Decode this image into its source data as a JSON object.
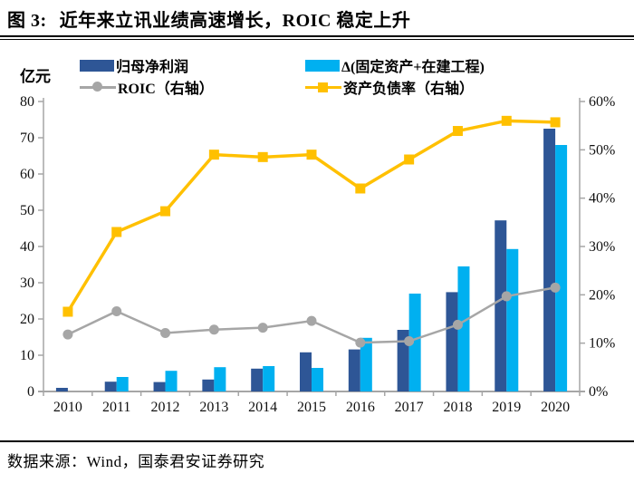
{
  "title": {
    "prefix": "图 3:",
    "text": "近年来立讯业绩高速增长，ROIC 稳定上升"
  },
  "source": "数据来源：Wind，国泰君安证券研究",
  "legend": [
    {
      "label": "归母净利润",
      "swatch": "bar",
      "color": "#2E5696"
    },
    {
      "label": "Δ(固定资产+在建工程)",
      "swatch": "bar",
      "color": "#00B0F0"
    },
    {
      "label": "ROIC（右轴）",
      "swatch": "line-circle",
      "color": "#A6A6A6"
    },
    {
      "label": "资产负债率（右轴）",
      "swatch": "line-square",
      "color": "#FFC000"
    }
  ],
  "colors": {
    "net_profit_bar": "#2E5696",
    "capex_bar": "#00B0F0",
    "roic_line": "#A6A6A6",
    "debt_line": "#FFC000",
    "axis": "#A6A6A6",
    "tick_text": "#111111"
  },
  "chart_data": {
    "type": "bar",
    "subtype": "combo-bar-line",
    "categories": [
      "2010",
      "2011",
      "2012",
      "2013",
      "2014",
      "2015",
      "2016",
      "2017",
      "2018",
      "2019",
      "2020"
    ],
    "series": [
      {
        "name": "归母净利润",
        "type": "bar",
        "axis": "left",
        "color": "#2E5696",
        "values": [
          1.0,
          2.7,
          2.6,
          3.3,
          6.3,
          10.8,
          11.6,
          17.0,
          27.4,
          47.2,
          72.5
        ]
      },
      {
        "name": "Δ(固定资产+在建工程)",
        "type": "bar",
        "axis": "left",
        "color": "#00B0F0",
        "values": [
          0,
          4.0,
          5.7,
          6.7,
          7.0,
          6.5,
          14.8,
          27.0,
          34.5,
          39.3,
          68.0
        ]
      },
      {
        "name": "ROIC（右轴）",
        "type": "line",
        "marker": "circle",
        "axis": "right",
        "color": "#A6A6A6",
        "values": [
          11.8,
          16.6,
          12.1,
          12.8,
          13.2,
          14.6,
          10.1,
          10.4,
          13.8,
          19.7,
          21.5
        ]
      },
      {
        "name": "资产负债率（右轴）",
        "type": "line",
        "marker": "square",
        "axis": "right",
        "color": "#FFC000",
        "values": [
          16.5,
          33.0,
          37.3,
          49.0,
          48.5,
          49.0,
          42.0,
          48.0,
          53.9,
          56.0,
          55.7
        ]
      }
    ],
    "left_axis": {
      "label": "亿元",
      "min": 0,
      "max": 80,
      "step": 10,
      "ticks": [
        "0",
        "10",
        "20",
        "30",
        "40",
        "50",
        "60",
        "70",
        "80"
      ]
    },
    "right_axis": {
      "min": 0,
      "max": 60,
      "step": 10,
      "suffix": "%",
      "ticks": [
        "0%",
        "10%",
        "20%",
        "30%",
        "40%",
        "50%",
        "60%"
      ]
    },
    "grid": false,
    "legend_position": "top"
  }
}
